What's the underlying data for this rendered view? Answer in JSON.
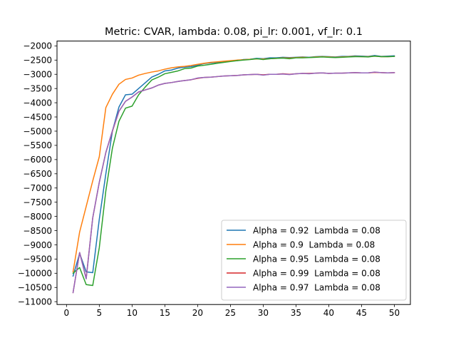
{
  "chart_data": {
    "type": "line",
    "title": "Metric: CVAR, lambda: 0.08, pi_lr: 0.001, vf_lr: 0.1",
    "xlabel": "",
    "ylabel": "",
    "xlim": [
      -1.45,
      52.45
    ],
    "ylim": [
      -11100,
      -1830
    ],
    "xticks": [
      0,
      5,
      10,
      15,
      20,
      25,
      30,
      35,
      40,
      45,
      50
    ],
    "yticks": [
      -11000,
      -10500,
      -10000,
      -9500,
      -9000,
      -8500,
      -8000,
      -7500,
      -7000,
      -6500,
      -6000,
      -5500,
      -5000,
      -4500,
      -4000,
      -3500,
      -3000,
      -2500,
      -2000
    ],
    "legend_position": "lower-right",
    "grid": false,
    "x": [
      1,
      2,
      3,
      4,
      5,
      6,
      7,
      8,
      9,
      10,
      11,
      12,
      13,
      14,
      15,
      16,
      17,
      18,
      19,
      20,
      21,
      22,
      23,
      24,
      25,
      26,
      27,
      28,
      29,
      30,
      31,
      32,
      33,
      34,
      35,
      36,
      37,
      38,
      39,
      40,
      41,
      42,
      43,
      44,
      45,
      46,
      47,
      48,
      49,
      50
    ],
    "series": [
      {
        "name": "Alpha = 0.92  Lambda = 0.08",
        "color": "#1f77b4",
        "values": [
          -10100,
          -9300,
          -9950,
          -9980,
          -8100,
          -6500,
          -5000,
          -4150,
          -3720,
          -3700,
          -3500,
          -3300,
          -3100,
          -3000,
          -2880,
          -2850,
          -2780,
          -2750,
          -2730,
          -2680,
          -2620,
          -2600,
          -2580,
          -2550,
          -2530,
          -2520,
          -2480,
          -2470,
          -2440,
          -2450,
          -2420,
          -2420,
          -2400,
          -2410,
          -2400,
          -2390,
          -2400,
          -2380,
          -2370,
          -2380,
          -2390,
          -2370,
          -2370,
          -2350,
          -2360,
          -2370,
          -2340,
          -2370,
          -2360,
          -2350
        ]
      },
      {
        "name": "Alpha = 0.9  Lambda = 0.08",
        "color": "#ff7f0e",
        "values": [
          -9950,
          -8550,
          -7650,
          -6750,
          -5900,
          -4170,
          -3700,
          -3350,
          -3180,
          -3130,
          -3030,
          -2970,
          -2920,
          -2880,
          -2820,
          -2770,
          -2740,
          -2720,
          -2690,
          -2650,
          -2610,
          -2580,
          -2560,
          -2540,
          -2520,
          -2500,
          -2490,
          -2470,
          -2460,
          -2460,
          -2450,
          -2440,
          -2420,
          -2430,
          -2410,
          -2400,
          -2410,
          -2390,
          -2380,
          -2390,
          -2400,
          -2390,
          -2380,
          -2370,
          -2380,
          -2380,
          -2360,
          -2380,
          -2380,
          -2370
        ]
      },
      {
        "name": "Alpha = 0.95  Lambda = 0.08",
        "color": "#2ca02c",
        "values": [
          -10000,
          -9800,
          -10400,
          -10430,
          -9100,
          -7100,
          -5600,
          -4650,
          -4190,
          -4120,
          -3720,
          -3450,
          -3200,
          -3100,
          -2980,
          -2930,
          -2880,
          -2800,
          -2780,
          -2710,
          -2680,
          -2650,
          -2610,
          -2580,
          -2550,
          -2520,
          -2500,
          -2480,
          -2450,
          -2480,
          -2450,
          -2440,
          -2430,
          -2450,
          -2420,
          -2420,
          -2410,
          -2400,
          -2390,
          -2400,
          -2410,
          -2400,
          -2390,
          -2380,
          -2380,
          -2390,
          -2360,
          -2380,
          -2380,
          -2370
        ]
      },
      {
        "name": "Alpha = 0.99  Lambda = 0.08",
        "color": "#d62728",
        "values": [
          -10680,
          -9270,
          -10180,
          -8050,
          -6800,
          -5750,
          -5000,
          -4300,
          -3950,
          -3800,
          -3620,
          -3550,
          -3480,
          -3380,
          -3320,
          -3290,
          -3250,
          -3220,
          -3190,
          -3140,
          -3110,
          -3100,
          -3080,
          -3060,
          -3050,
          -3040,
          -3020,
          -3010,
          -3000,
          -3020,
          -3000,
          -3000,
          -2980,
          -3000,
          -2980,
          -2970,
          -2970,
          -2960,
          -2950,
          -2970,
          -2960,
          -2960,
          -2950,
          -2940,
          -2950,
          -2950,
          -2930,
          -2940,
          -2950,
          -2940
        ]
      },
      {
        "name": "Alpha = 0.97  Lambda = 0.08",
        "color": "#9467bd",
        "values": [
          -10680,
          -9270,
          -10200,
          -8050,
          -6800,
          -5750,
          -4980,
          -4300,
          -3950,
          -3800,
          -3620,
          -3550,
          -3480,
          -3380,
          -3320,
          -3290,
          -3250,
          -3220,
          -3190,
          -3130,
          -3110,
          -3100,
          -3080,
          -3060,
          -3050,
          -3040,
          -3020,
          -3010,
          -3000,
          -3030,
          -3000,
          -3000,
          -2990,
          -3010,
          -2980,
          -2970,
          -2980,
          -2960,
          -2950,
          -2970,
          -2960,
          -2960,
          -2950,
          -2940,
          -2950,
          -2950,
          -2920,
          -2940,
          -2950,
          -2940
        ]
      }
    ]
  }
}
